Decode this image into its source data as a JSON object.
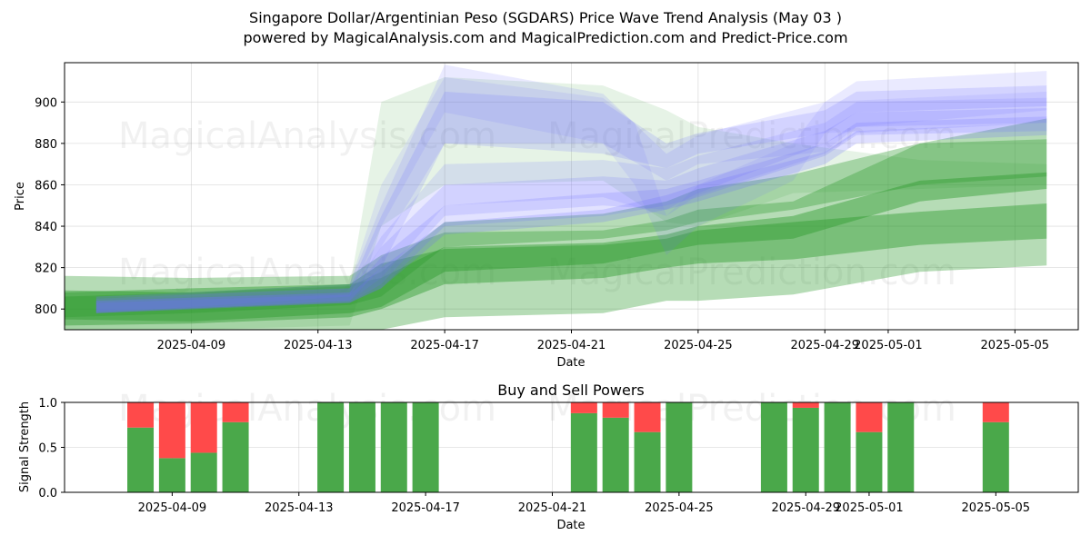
{
  "header": {
    "title_line1": "Singapore Dollar/Argentinian Peso (SGDARS) Price Wave Trend Analysis (May 03 )",
    "title_line2": "powered by MagicalAnalysis.com and MagicalPrediction.com and Predict-Price.com"
  },
  "watermarks": [
    "MagicalAnalysis.com",
    "MagicalPrediction.com"
  ],
  "colors": {
    "green": "#2e9b2e",
    "blue": "#6f6fff",
    "buy": "#4aa84a",
    "sell": "#ff4a4a"
  },
  "chart_data": [
    {
      "type": "area",
      "title": "",
      "xlabel": "Date",
      "ylabel": "Price",
      "xlim": [
        "2025-04-05",
        "2025-05-07"
      ],
      "ylim": [
        790,
        919
      ],
      "x_ticks": [
        "2025-04-09",
        "2025-04-13",
        "2025-04-17",
        "2025-04-21",
        "2025-04-25",
        "2025-04-29",
        "2025-05-01",
        "2025-05-05"
      ],
      "y_ticks": [
        800,
        820,
        840,
        860,
        880,
        900
      ],
      "grid": true,
      "bands": [
        {
          "name": "",
          "color": "green",
          "x": [
            "2025-04-05",
            "2025-04-09",
            "2025-04-14",
            "2025-04-15",
            "2025-04-17",
            "2025-04-22",
            "2025-04-24",
            "2025-04-25",
            "2025-04-28",
            "2025-05-02",
            "2025-05-06"
          ],
          "upper": [
            816,
            815,
            816,
            826,
            837,
            838,
            843,
            848,
            852,
            880,
            892
          ],
          "lower": [
            790,
            790,
            790,
            790,
            796,
            798,
            804,
            804,
            807,
            818,
            821
          ],
          "opacity": 0.35
        },
        {
          "name": "",
          "color": "green",
          "x": [
            "2025-04-05",
            "2025-04-09",
            "2025-04-14",
            "2025-04-15",
            "2025-04-17",
            "2025-04-22",
            "2025-04-24",
            "2025-04-25",
            "2025-04-28",
            "2025-05-02",
            "2025-05-06"
          ],
          "upper": [
            808,
            810,
            812,
            822,
            829,
            831,
            834,
            838,
            842,
            847,
            851
          ],
          "lower": [
            792,
            793,
            796,
            800,
            812,
            815,
            820,
            822,
            824,
            831,
            834
          ],
          "opacity": 0.45
        },
        {
          "name": "",
          "color": "green",
          "x": [
            "2025-04-05",
            "2025-04-09",
            "2025-04-14",
            "2025-04-15",
            "2025-04-17",
            "2025-04-22",
            "2025-04-24",
            "2025-04-25",
            "2025-04-28",
            "2025-05-02",
            "2025-05-06"
          ],
          "upper": [
            806,
            808,
            811,
            818,
            842,
            846,
            852,
            858,
            865,
            880,
            882
          ],
          "lower": [
            796,
            798,
            802,
            806,
            830,
            834,
            838,
            842,
            848,
            860,
            864
          ],
          "opacity": 0.35
        },
        {
          "name": "",
          "color": "green",
          "x": [
            "2025-04-05",
            "2025-04-09",
            "2025-04-14",
            "2025-04-15",
            "2025-04-17",
            "2025-04-22",
            "2025-04-24",
            "2025-04-25",
            "2025-04-28",
            "2025-05-02",
            "2025-05-06"
          ],
          "upper": [
            809,
            808,
            812,
            815,
            830,
            832,
            836,
            840,
            845,
            862,
            866
          ],
          "lower": [
            795,
            794,
            798,
            801,
            818,
            822,
            828,
            831,
            834,
            852,
            858
          ],
          "opacity": 0.45
        },
        {
          "name": "",
          "color": "green",
          "x": [
            "2025-04-05",
            "2025-04-09",
            "2025-04-14",
            "2025-04-15",
            "2025-04-17",
            "2025-04-22",
            "2025-04-24",
            "2025-04-25",
            "2025-04-28",
            "2025-05-02",
            "2025-05-06"
          ],
          "upper": [
            806,
            806,
            810,
            900,
            912,
            908,
            896,
            888,
            880,
            872,
            870
          ],
          "lower": [
            790,
            790,
            792,
            840,
            860,
            862,
            842,
            840,
            856,
            858,
            860
          ],
          "opacity": 0.12
        },
        {
          "name": "",
          "color": "blue",
          "x": [
            "2025-04-06",
            "2025-04-14",
            "2025-04-15",
            "2025-04-17",
            "2025-04-22",
            "2025-04-24",
            "2025-04-25",
            "2025-04-29",
            "2025-04-30",
            "2025-05-06"
          ],
          "upper": [
            806,
            812,
            850,
            918,
            904,
            875,
            884,
            900,
            910,
            915
          ],
          "lower": [
            798,
            806,
            830,
            880,
            880,
            862,
            870,
            876,
            888,
            896
          ],
          "opacity": 0.15
        },
        {
          "name": "",
          "color": "blue",
          "x": [
            "2025-04-06",
            "2025-04-14",
            "2025-04-15",
            "2025-04-17",
            "2025-04-22",
            "2025-04-24",
            "2025-04-25",
            "2025-04-29",
            "2025-04-30",
            "2025-05-06"
          ],
          "upper": [
            805,
            810,
            845,
            905,
            900,
            880,
            885,
            896,
            905,
            908
          ],
          "lower": [
            798,
            804,
            820,
            880,
            875,
            868,
            875,
            885,
            895,
            898
          ],
          "opacity": 0.18
        },
        {
          "name": "",
          "color": "blue",
          "x": [
            "2025-04-06",
            "2025-04-14",
            "2025-04-15",
            "2025-04-17",
            "2025-04-22",
            "2025-04-24",
            "2025-04-25",
            "2025-04-29",
            "2025-04-30",
            "2025-05-06"
          ],
          "upper": [
            806,
            810,
            835,
            870,
            872,
            868,
            874,
            890,
            900,
            902
          ],
          "lower": [
            798,
            804,
            815,
            850,
            854,
            845,
            855,
            875,
            885,
            890
          ],
          "opacity": 0.16
        },
        {
          "name": "",
          "color": "blue",
          "x": [
            "2025-04-06",
            "2025-04-14",
            "2025-04-15",
            "2025-04-17",
            "2025-04-22",
            "2025-04-24",
            "2025-04-25",
            "2025-04-29",
            "2025-04-30",
            "2025-05-06"
          ],
          "upper": [
            804,
            808,
            830,
            860,
            864,
            862,
            868,
            886,
            895,
            897
          ],
          "lower": [
            798,
            803,
            812,
            845,
            850,
            848,
            856,
            880,
            888,
            890
          ],
          "opacity": 0.18
        },
        {
          "name": "",
          "color": "blue",
          "x": [
            "2025-04-06",
            "2025-04-14",
            "2025-04-15",
            "2025-04-17",
            "2025-04-22",
            "2025-04-24",
            "2025-04-25",
            "2025-04-29",
            "2025-04-30",
            "2025-05-06"
          ],
          "upper": [
            804,
            808,
            825,
            850,
            856,
            858,
            862,
            880,
            890,
            893
          ],
          "lower": [
            798,
            803,
            810,
            840,
            845,
            850,
            854,
            874,
            884,
            886
          ],
          "opacity": 0.2
        },
        {
          "name": "",
          "color": "blue",
          "x": [
            "2025-04-06",
            "2025-04-14",
            "2025-04-15",
            "2025-04-17",
            "2025-04-22",
            "2025-04-24",
            "2025-04-25",
            "2025-04-29",
            "2025-04-30",
            "2025-05-06"
          ],
          "upper": [
            803,
            807,
            820,
            842,
            848,
            855,
            860,
            876,
            886,
            890
          ],
          "lower": [
            799,
            803,
            810,
            836,
            842,
            848,
            852,
            870,
            880,
            884
          ],
          "opacity": 0.22
        },
        {
          "name": "",
          "color": "blue",
          "x": [
            "2025-04-14",
            "2025-04-15",
            "2025-04-17",
            "2025-04-22",
            "2025-04-23",
            "2025-04-24",
            "2025-04-25",
            "2025-04-28",
            "2025-04-29",
            "2025-05-06"
          ],
          "upper": [
            812,
            860,
            912,
            902,
            890,
            845,
            860,
            880,
            900,
            905
          ],
          "lower": [
            806,
            840,
            895,
            880,
            860,
            826,
            840,
            862,
            885,
            890
          ],
          "opacity": 0.12
        }
      ]
    },
    {
      "type": "bar",
      "title": "Buy and Sell Powers",
      "xlabel": "Date",
      "ylabel": "Signal Strength",
      "ylim": [
        0,
        1
      ],
      "y_ticks": [
        "0.0",
        "0.5",
        "1.0"
      ],
      "x_ticks": [
        "2025-04-09",
        "2025-04-13",
        "2025-04-17",
        "2025-04-21",
        "2025-04-25",
        "2025-04-29",
        "2025-05-01",
        "2025-05-05"
      ],
      "grid": true,
      "series": [
        {
          "name": "",
          "color": "buy",
          "x": [
            "2025-04-08",
            "2025-04-09",
            "2025-04-10",
            "2025-04-11",
            "2025-04-14",
            "2025-04-15",
            "2025-04-16",
            "2025-04-17",
            "2025-04-22",
            "2025-04-23",
            "2025-04-24",
            "2025-04-25",
            "2025-04-28",
            "2025-04-29",
            "2025-04-30",
            "2025-05-01",
            "2025-05-02",
            "2025-05-05"
          ],
          "values": [
            0.72,
            0.38,
            0.44,
            0.78,
            1.0,
            1.0,
            1.0,
            1.0,
            0.88,
            0.83,
            0.67,
            1.0,
            1.0,
            0.94,
            1.0,
            0.67,
            1.0,
            0.78
          ]
        },
        {
          "name": "",
          "color": "sell",
          "x": [
            "2025-04-08",
            "2025-04-09",
            "2025-04-10",
            "2025-04-11",
            "2025-04-14",
            "2025-04-15",
            "2025-04-16",
            "2025-04-17",
            "2025-04-22",
            "2025-04-23",
            "2025-04-24",
            "2025-04-25",
            "2025-04-28",
            "2025-04-29",
            "2025-04-30",
            "2025-05-01",
            "2025-05-02",
            "2025-05-05"
          ],
          "values": [
            0.28,
            0.62,
            0.56,
            0.22,
            0,
            0,
            0,
            0,
            0.12,
            0.17,
            0.33,
            0,
            0,
            0.06,
            0,
            0.33,
            0,
            0.22
          ]
        }
      ]
    }
  ]
}
